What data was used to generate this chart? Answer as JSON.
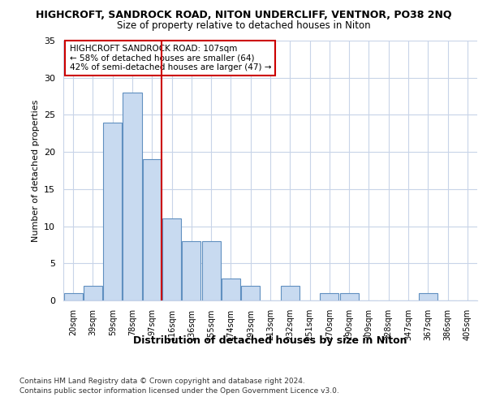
{
  "title1": "HIGHCROFT, SANDROCK ROAD, NITON UNDERCLIFF, VENTNOR, PO38 2NQ",
  "title2": "Size of property relative to detached houses in Niton",
  "xlabel": "Distribution of detached houses by size in Niton",
  "ylabel": "Number of detached properties",
  "categories": [
    "20sqm",
    "39sqm",
    "59sqm",
    "78sqm",
    "97sqm",
    "116sqm",
    "136sqm",
    "155sqm",
    "174sqm",
    "193sqm",
    "213sqm",
    "232sqm",
    "251sqm",
    "270sqm",
    "290sqm",
    "309sqm",
    "328sqm",
    "347sqm",
    "367sqm",
    "386sqm",
    "405sqm"
  ],
  "values": [
    1,
    2,
    24,
    28,
    19,
    11,
    8,
    8,
    3,
    2,
    0,
    2,
    0,
    1,
    1,
    0,
    0,
    0,
    1,
    0,
    0
  ],
  "bar_color": "#c8daf0",
  "bar_edge_color": "#6090c0",
  "vline_x": 5,
  "vline_color": "#cc0000",
  "annotation_line1": "HIGHCROFT SANDROCK ROAD: 107sqm",
  "annotation_line2": "← 58% of detached houses are smaller (64)",
  "annotation_line3": "42% of semi-detached houses are larger (47) →",
  "annotation_box_color": "#ffffff",
  "annotation_box_edge": "#cc0000",
  "ylim": [
    0,
    35
  ],
  "yticks": [
    0,
    5,
    10,
    15,
    20,
    25,
    30,
    35
  ],
  "footer1": "Contains HM Land Registry data © Crown copyright and database right 2024.",
  "footer2": "Contains public sector information licensed under the Open Government Licence v3.0.",
  "bg_color": "#ffffff",
  "plot_bg_color": "#ffffff",
  "grid_color": "#c8d4e8"
}
